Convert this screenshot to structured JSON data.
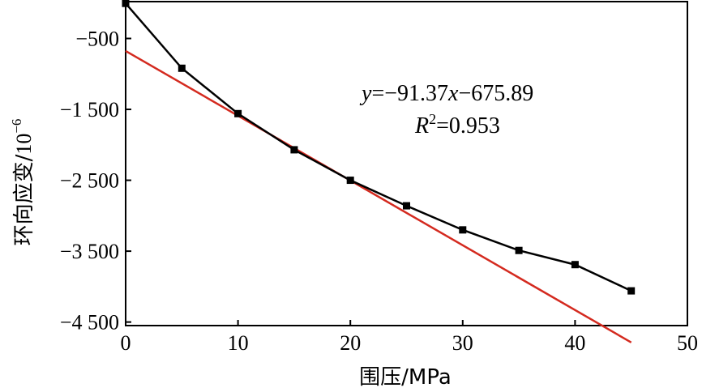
{
  "chart_data": {
    "type": "line",
    "title": "",
    "xlabel": "围压/MPa",
    "ylabel_main": "环向应变/",
    "ylabel_unit_base": "10",
    "ylabel_unit_exp": "−6",
    "xlim": [
      0,
      50
    ],
    "ylim": [
      -4550,
      20
    ],
    "xticks": [
      0,
      10,
      20,
      30,
      40,
      50
    ],
    "yticks": [
      -500,
      -1500,
      -2500,
      -3500,
      -4500
    ],
    "ytick_labels": [
      "−500",
      "−1 500",
      "−2 500",
      "−3 500",
      "−4 500"
    ],
    "grid": false,
    "series": [
      {
        "kind": "measured",
        "color": "#000000",
        "marker": "square",
        "x": [
          0,
          5,
          10,
          15,
          20,
          25,
          30,
          35,
          40,
          45
        ],
        "y": [
          -5,
          -920,
          -1560,
          -2070,
          -2500,
          -2860,
          -3200,
          -3490,
          -3690,
          -4060
        ]
      },
      {
        "kind": "fit",
        "color": "#d42a1f",
        "slope": -91.37,
        "intercept": -675.89,
        "x": [
          0,
          45
        ]
      }
    ],
    "annotations": {
      "equation": {
        "y_var": "y",
        "eq_body": "=−91.37",
        "x_var": "x",
        "eq_tail": "−675.89"
      },
      "r2": {
        "var": "R",
        "sup": "2",
        "value": "=0.953"
      }
    }
  }
}
